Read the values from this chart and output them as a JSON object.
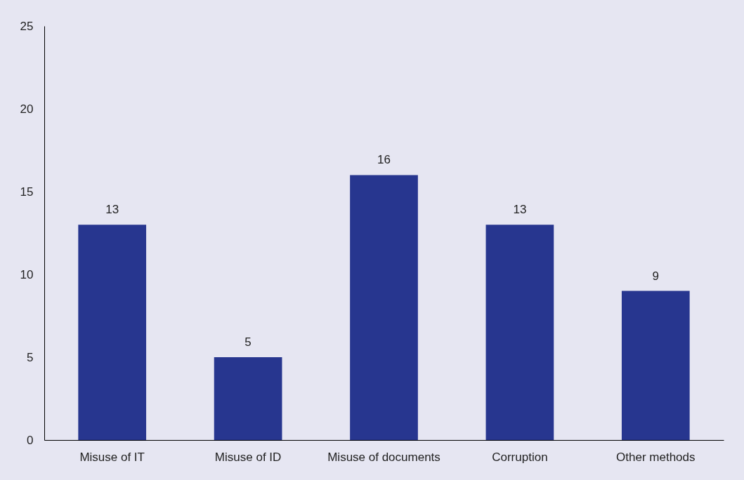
{
  "chart_data": {
    "type": "bar",
    "categories": [
      "Misuse of IT",
      "Misuse of ID",
      "Misuse of documents",
      "Corruption",
      "Other methods"
    ],
    "values": [
      13,
      5,
      16,
      13,
      9
    ],
    "color": "#27368f",
    "ylim": [
      0,
      25
    ],
    "yticks": [
      0,
      5,
      10,
      15,
      20,
      25
    ],
    "grid": false,
    "data_labels": true
  }
}
